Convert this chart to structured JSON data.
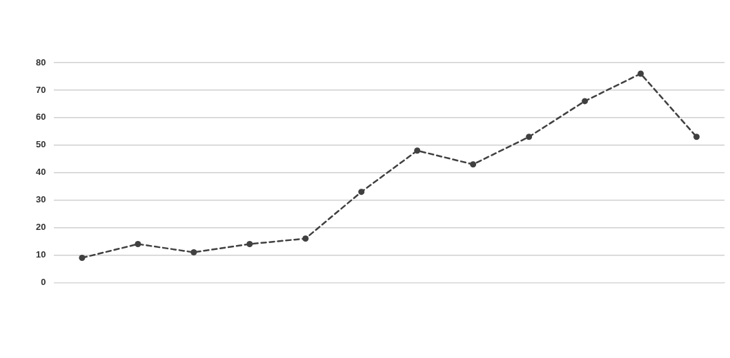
{
  "chart_data": {
    "type": "line",
    "categories": [
      null,
      null,
      null,
      null,
      null,
      null,
      null,
      null,
      null,
      null,
      null,
      null
    ],
    "values": [
      9,
      14,
      11,
      14,
      16,
      33,
      48,
      43,
      53,
      66,
      76,
      53
    ],
    "color": "#404040",
    "ylim": [
      0,
      80
    ],
    "yticks": [
      0,
      10,
      20,
      30,
      40,
      50,
      60,
      70,
      80
    ],
    "grid": "y",
    "marker": "circle",
    "line_style": "dashed"
  }
}
